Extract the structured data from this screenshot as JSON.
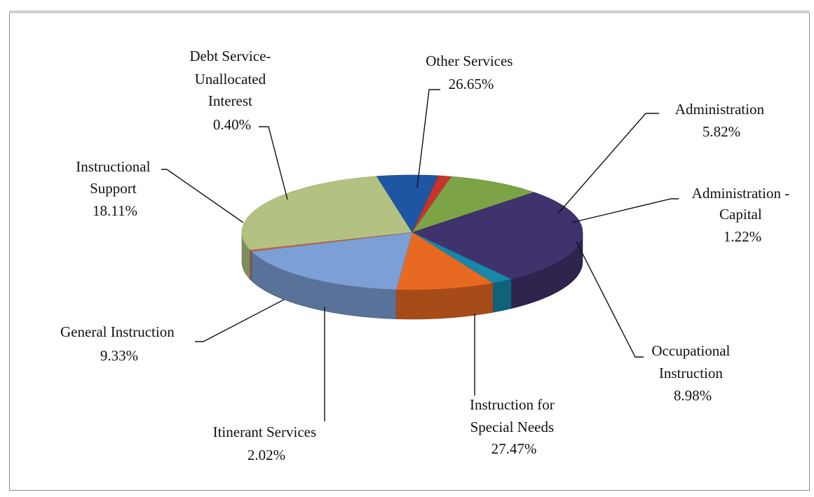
{
  "chart_data": {
    "type": "pie",
    "title": "",
    "slices": [
      {
        "label": "Other Services",
        "value": 26.65,
        "display": "26.65%",
        "color": "#b3c283"
      },
      {
        "label": "Administration",
        "value": 5.82,
        "display": "5.82%",
        "color": "#1f56a3"
      },
      {
        "label": "Administration - Capital",
        "value": 1.22,
        "display": "1.22%",
        "color": "#c8342a"
      },
      {
        "label": "Occupational Instruction",
        "value": 8.98,
        "display": "8.98%",
        "color": "#7ca447"
      },
      {
        "label": "Instruction for Special Needs",
        "value": 27.47,
        "display": "27.47%",
        "color": "#40326d"
      },
      {
        "label": "Itinerant Services",
        "value": 2.02,
        "display": "2.02%",
        "color": "#1787aa"
      },
      {
        "label": "General Instruction",
        "value": 9.33,
        "display": "9.33%",
        "color": "#e86a22"
      },
      {
        "label": "Instructional Support",
        "value": 18.11,
        "display": "18.11%",
        "color": "#7c9fd6"
      },
      {
        "label": "Debt Service- Unallocated Interest",
        "value": 0.4,
        "display": "0.40%",
        "color": "#c76a4a"
      }
    ]
  },
  "labels": {
    "other_services": [
      "Other Services",
      "26.65%"
    ],
    "administration": [
      "Administration",
      "5.82%"
    ],
    "administration_capital": [
      "Administration -",
      "Capital",
      "1.22%"
    ],
    "occupational": [
      "Occupational",
      "Instruction",
      "8.98%"
    ],
    "special_needs": [
      "Instruction for",
      "Special Needs",
      "27.47%"
    ],
    "itinerant": [
      "Itinerant Services",
      "2.02%"
    ],
    "general": [
      "General Instruction",
      "9.33%"
    ],
    "instructional_support": [
      "Instructional",
      "Support",
      "18.11%"
    ],
    "debt_service": [
      "Debt Service-",
      "Unallocated",
      "Interest",
      "0.40%"
    ]
  }
}
